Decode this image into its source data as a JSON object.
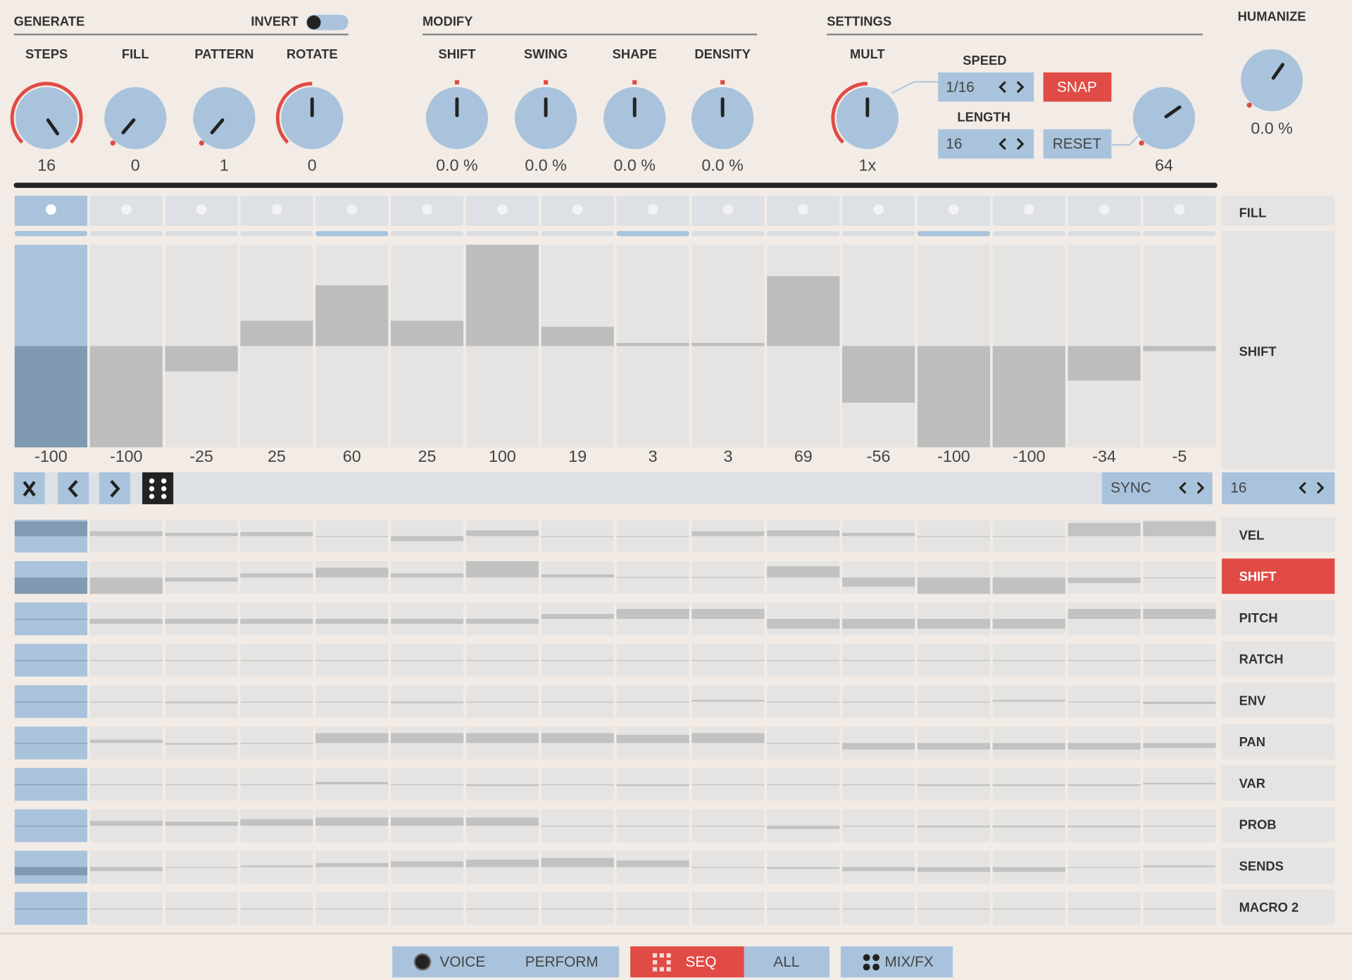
{
  "generate": {
    "title": "GENERATE",
    "invert": "INVERT",
    "knobs": [
      {
        "label": "STEPS",
        "value": "16"
      },
      {
        "label": "FILL",
        "value": "0"
      },
      {
        "label": "PATTERN",
        "value": "1"
      },
      {
        "label": "ROTATE",
        "value": "0"
      }
    ]
  },
  "modify": {
    "title": "MODIFY",
    "knobs": [
      {
        "label": "SHIFT",
        "value": "0.0 %"
      },
      {
        "label": "SWING",
        "value": "0.0 %"
      },
      {
        "label": "SHAPE",
        "value": "0.0 %"
      },
      {
        "label": "DENSITY",
        "value": "0.0 %"
      }
    ]
  },
  "settings": {
    "title": "SETTINGS",
    "mult": {
      "label": "MULT",
      "value": "1x"
    },
    "speed": {
      "label": "SPEED",
      "value": "1/16"
    },
    "snap": "SNAP",
    "length": {
      "label": "LENGTH",
      "value": "16"
    },
    "reset": "RESET",
    "length_knob": "64"
  },
  "humanize": {
    "label": "HUMANIZE",
    "value": "0.0 %"
  },
  "sequencer": {
    "fill_label": "FILL",
    "shift_label": "SHIFT",
    "shift_values": [
      -100,
      -100,
      -25,
      25,
      60,
      25,
      100,
      19,
      3,
      3,
      69,
      -56,
      -100,
      -100,
      -34,
      -5
    ],
    "sync": "SYNC",
    "steps": "16",
    "lanes": [
      {
        "label": "VEL",
        "values": [
          90,
          30,
          20,
          25,
          0,
          -30,
          35,
          0,
          0,
          30,
          35,
          20,
          0,
          0,
          80,
          90
        ]
      },
      {
        "label": "SHIFT",
        "values": [
          -100,
          -100,
          -25,
          25,
          60,
          25,
          100,
          19,
          3,
          3,
          69,
          -56,
          -100,
          -100,
          -34,
          -5
        ]
      },
      {
        "label": "PITCH",
        "values": [
          0,
          -30,
          -30,
          -30,
          -30,
          -30,
          -30,
          30,
          60,
          60,
          -60,
          -60,
          -60,
          -60,
          60,
          60
        ]
      },
      {
        "label": "RATCH",
        "values": [
          0,
          0,
          0,
          0,
          0,
          0,
          0,
          0,
          0,
          0,
          0,
          0,
          0,
          0,
          0,
          0
        ]
      },
      {
        "label": "ENV",
        "values": [
          0,
          0,
          -10,
          0,
          0,
          -10,
          0,
          0,
          0,
          10,
          0,
          0,
          0,
          10,
          0,
          -15
        ]
      },
      {
        "label": "PAN",
        "values": [
          0,
          20,
          -10,
          0,
          60,
          60,
          60,
          60,
          50,
          60,
          0,
          -40,
          -40,
          -40,
          -40,
          -30
        ]
      },
      {
        "label": "VAR",
        "values": [
          0,
          0,
          0,
          0,
          15,
          0,
          -10,
          0,
          -10,
          0,
          0,
          0,
          -10,
          -10,
          -10,
          10
        ]
      },
      {
        "label": "PROB",
        "values": [
          0,
          30,
          25,
          40,
          50,
          50,
          50,
          0,
          0,
          0,
          -20,
          0,
          -10,
          -10,
          -10,
          0
        ]
      },
      {
        "label": "SENDS",
        "values": [
          -50,
          -25,
          0,
          10,
          25,
          35,
          45,
          55,
          40,
          0,
          -10,
          -25,
          -30,
          -30,
          0,
          10
        ]
      },
      {
        "label": "MACRO 2",
        "values": [
          0,
          0,
          0,
          0,
          0,
          0,
          0,
          0,
          0,
          0,
          0,
          0,
          0,
          0,
          0,
          0
        ]
      }
    ]
  },
  "tabs": [
    "VOICE",
    "PERFORM",
    "SEQ",
    "ALL",
    "MIX/FX"
  ]
}
